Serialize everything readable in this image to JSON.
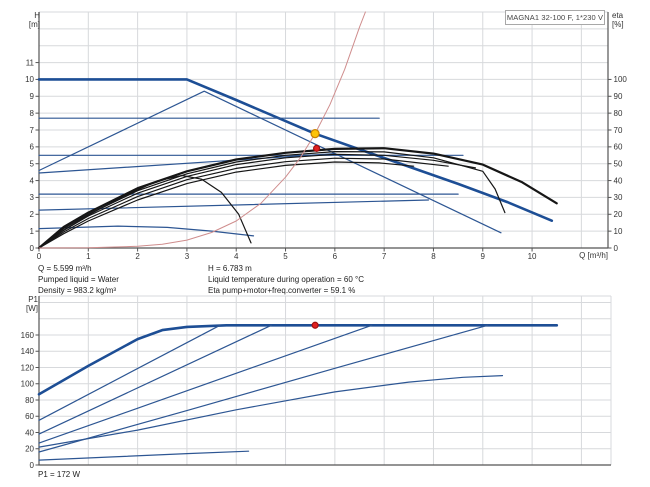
{
  "pump_title": "MAGNA1 32-100 F, 1*230 V",
  "top_chart": {
    "y_label_line1": "H",
    "y_label_line2": "[m]",
    "y2_label_line1": "eta",
    "y2_label_line2": "[%]",
    "x_label": "Q [m³/h]"
  },
  "info": {
    "flow": "Q = 5.599 m³/h",
    "liquid": "Pumped liquid = Water",
    "density": "Density = 983.2 kg/m³",
    "head": "H = 6.783 m",
    "temperature": "Liquid temperature during operation = 60 °C",
    "efficiency": "Eta pump+motor+freq.converter = 59.1 %"
  },
  "bottom_chart": {
    "y_label_line1": "P1",
    "y_label_line2": "[W]",
    "note": "P1 = 172 W"
  },
  "colors": {
    "curve_blue": "#2d5693",
    "curve_blue_thick": "#1d4e95",
    "curve_black": "#161616",
    "system_curve_red": "#cf8d8d",
    "duty_yellow": "#fdc409",
    "duty_yellow_edge": "#c98200",
    "duty_red": "#e02020",
    "duty_red_edge": "#9e1010",
    "grid": "#d7d9dc",
    "axis": "#555555"
  },
  "chart_data": [
    {
      "id": "qh",
      "type": "line",
      "title": "MAGNA1 32-100 F, 1*230 V",
      "xlabel": "Q [m³/h]",
      "ylabel": "H [m]",
      "y2label": "eta [%]",
      "xlim": [
        0,
        11.54
      ],
      "ylim": [
        0,
        14
      ],
      "y2lim": [
        0,
        140
      ],
      "xticks": [
        0,
        1,
        2,
        3,
        4,
        5,
        6,
        7,
        8,
        9,
        10
      ],
      "yticks": [
        0,
        1,
        2,
        3,
        4,
        5,
        6,
        7,
        8,
        9,
        10,
        11
      ],
      "y2ticks": [
        0,
        10,
        20,
        30,
        40,
        50,
        60,
        70,
        80,
        90,
        100
      ],
      "grid": {
        "x_step": 1,
        "y_step": 1
      },
      "series": [
        {
          "name": "qh-max-speed",
          "color": "#1d4e95",
          "w": 2.6,
          "points": [
            [
              0,
              10
            ],
            [
              3,
              10
            ],
            [
              4,
              8.78
            ],
            [
              5,
              7.53
            ],
            [
              5.6,
              6.78
            ],
            [
              6.5,
              5.85
            ],
            [
              7.5,
              4.83
            ],
            [
              8.5,
              3.8
            ],
            [
              9.5,
              2.72
            ],
            [
              10.4,
              1.62
            ]
          ]
        },
        {
          "name": "prop-pressure-line",
          "color": "#2d5693",
          "w": 1.2,
          "points": [
            [
              0,
              4.6
            ],
            [
              3.35,
              9.3
            ],
            [
              9.37,
              0.9
            ]
          ]
        },
        {
          "name": "const-pressure-7-7",
          "color": "#2d5693",
          "w": 1.2,
          "points": [
            [
              0,
              7.7
            ],
            [
              6.9,
              7.7
            ]
          ]
        },
        {
          "name": "const-pressure-5-5",
          "color": "#2d5693",
          "w": 1.2,
          "points": [
            [
              0,
              5.5
            ],
            [
              8.6,
              5.5
            ]
          ]
        },
        {
          "name": "const-pressure-3-2",
          "color": "#2d5693",
          "w": 1.2,
          "points": [
            [
              0,
              3.2
            ],
            [
              8.5,
              3.2
            ]
          ]
        },
        {
          "name": "setpoint-riser-4-45",
          "color": "#2d5693",
          "w": 1.2,
          "points": [
            [
              0,
              4.45
            ],
            [
              6.0,
              5.6
            ]
          ]
        },
        {
          "name": "setpoint-riser-2-25",
          "color": "#2d5693",
          "w": 1.2,
          "points": [
            [
              0,
              2.25
            ],
            [
              7.9,
              2.85
            ]
          ]
        },
        {
          "name": "qh-min-speed",
          "color": "#2d5693",
          "w": 1.2,
          "points": [
            [
              0,
              1.15
            ],
            [
              1.6,
              1.3
            ],
            [
              2.6,
              1.22
            ],
            [
              3.5,
              1.0
            ],
            [
              4.35,
              0.72
            ]
          ]
        },
        {
          "name": "eta-max-speed",
          "color": "#161616",
          "w": 2.2,
          "points": [
            [
              0,
              0
            ],
            [
              0.5,
              1.25
            ],
            [
              1,
              2.1
            ],
            [
              2,
              3.55
            ],
            [
              3,
              4.55
            ],
            [
              4,
              5.25
            ],
            [
              5,
              5.65
            ],
            [
              6,
              5.88
            ],
            [
              7,
              5.92
            ],
            [
              8,
              5.6
            ],
            [
              9,
              4.95
            ],
            [
              9.8,
              3.9
            ],
            [
              10.5,
              2.65
            ]
          ]
        },
        {
          "name": "eta-speed-2",
          "color": "#161616",
          "w": 1.2,
          "points": [
            [
              0,
              0
            ],
            [
              0.5,
              1.15
            ],
            [
              1,
              2.0
            ],
            [
              2,
              3.4
            ],
            [
              3,
              4.4
            ],
            [
              4,
              5.1
            ],
            [
              5,
              5.5
            ],
            [
              6,
              5.72
            ],
            [
              7,
              5.7
            ],
            [
              8,
              5.35
            ],
            [
              9,
              4.55
            ],
            [
              9.25,
              3.5
            ],
            [
              9.45,
              2.1
            ]
          ]
        },
        {
          "name": "eta-speed-3",
          "color": "#161616",
          "w": 1.2,
          "points": [
            [
              0,
              0
            ],
            [
              0.5,
              1.05
            ],
            [
              1,
              1.9
            ],
            [
              2,
              3.25
            ],
            [
              3,
              4.25
            ],
            [
              4,
              4.95
            ],
            [
              5,
              5.35
            ],
            [
              6,
              5.56
            ],
            [
              7,
              5.5
            ],
            [
              8,
              5.2
            ],
            [
              8.85,
              4.75
            ]
          ]
        },
        {
          "name": "eta-speed-4",
          "color": "#161616",
          "w": 1.2,
          "points": [
            [
              0,
              0
            ],
            [
              0.5,
              0.95
            ],
            [
              1,
              1.75
            ],
            [
              2,
              3.05
            ],
            [
              3,
              4.05
            ],
            [
              4,
              4.72
            ],
            [
              5,
              5.12
            ],
            [
              6,
              5.33
            ],
            [
              7,
              5.28
            ],
            [
              8.3,
              4.85
            ]
          ]
        },
        {
          "name": "eta-speed-5",
          "color": "#161616",
          "w": 1.2,
          "points": [
            [
              0,
              0
            ],
            [
              0.5,
              0.85
            ],
            [
              1,
              1.6
            ],
            [
              2,
              2.85
            ],
            [
              3,
              3.82
            ],
            [
              4,
              4.5
            ],
            [
              5,
              4.9
            ],
            [
              6,
              5.1
            ],
            [
              6.9,
              5.05
            ],
            [
              7.6,
              4.85
            ]
          ]
        },
        {
          "name": "eta-min-speed",
          "color": "#161616",
          "w": 1.2,
          "points": [
            [
              0,
              0
            ],
            [
              0.5,
              1.05
            ],
            [
              1,
              1.95
            ],
            [
              1.7,
              3.05
            ],
            [
              2.4,
              3.98
            ],
            [
              2.9,
              4.3
            ],
            [
              3.3,
              4.08
            ],
            [
              3.7,
              3.3
            ],
            [
              4.05,
              2.0
            ],
            [
              4.3,
              0.3
            ]
          ]
        },
        {
          "name": "system-curve",
          "color": "#cf8d8d",
          "w": 1,
          "points": [
            [
              0,
              0
            ],
            [
              1,
              0.02
            ],
            [
              2,
              0.1
            ],
            [
              2.5,
              0.22
            ],
            [
              3,
              0.47
            ],
            [
              3.5,
              0.92
            ],
            [
              4,
              1.6
            ],
            [
              4.5,
              2.65
            ],
            [
              5,
              4.2
            ],
            [
              5.3,
              5.35
            ],
            [
              5.6,
              6.78
            ],
            [
              5.9,
              8.5
            ],
            [
              6.2,
              10.6
            ],
            [
              6.5,
              13.1
            ],
            [
              6.62,
              14
            ]
          ]
        }
      ],
      "markers": [
        {
          "name": "duty-point",
          "x": 5.599,
          "y": 6.783,
          "r": 4,
          "fill": "#fdc409",
          "stroke": "#c98200"
        },
        {
          "name": "eta-duty-point",
          "x": 5.63,
          "y2": 59.1,
          "r": 3,
          "fill": "#e02020",
          "stroke": "#9e1010"
        }
      ]
    },
    {
      "id": "power",
      "type": "line",
      "title": "",
      "xlabel": "",
      "ylabel": "P1 [W]",
      "xlim": [
        0,
        11.6
      ],
      "ylim": [
        0,
        208
      ],
      "xticks": [],
      "yticks": [
        0,
        20,
        40,
        60,
        80,
        100,
        120,
        140,
        160
      ],
      "grid": {
        "x_step": 1,
        "y_step": 20
      },
      "series": [
        {
          "name": "p1-max-speed",
          "color": "#1d4e95",
          "w": 2.6,
          "points": [
            [
              0,
              87
            ],
            [
              1,
              122
            ],
            [
              2,
              155
            ],
            [
              2.5,
              166
            ],
            [
              3,
              170
            ],
            [
              3.8,
              172
            ],
            [
              10.5,
              172
            ]
          ]
        },
        {
          "name": "p1-speed-2",
          "color": "#2d5693",
          "w": 1.2,
          "points": [
            [
              0,
              55
            ],
            [
              3.67,
              172
            ]
          ]
        },
        {
          "name": "p1-speed-3",
          "color": "#2d5693",
          "w": 1.2,
          "points": [
            [
              0,
              38
            ],
            [
              4.71,
              172
            ]
          ]
        },
        {
          "name": "p1-speed-4",
          "color": "#2d5693",
          "w": 1.2,
          "points": [
            [
              0,
              27
            ],
            [
              6.75,
              172
            ]
          ]
        },
        {
          "name": "p1-speed-5",
          "color": "#2d5693",
          "w": 1.2,
          "points": [
            [
              0,
              22
            ],
            [
              2,
              43
            ],
            [
              4,
              68
            ],
            [
              6,
              90
            ],
            [
              7.5,
              102
            ],
            [
              8.6,
              108
            ],
            [
              9.4,
              110
            ]
          ]
        },
        {
          "name": "p1-speed-6",
          "color": "#2d5693",
          "w": 1.2,
          "points": [
            [
              0,
              16
            ],
            [
              3,
              67
            ],
            [
              6,
              119
            ],
            [
              9.1,
              172
            ]
          ]
        },
        {
          "name": "p1-min-speed",
          "color": "#2d5693",
          "w": 1.2,
          "points": [
            [
              0,
              6
            ],
            [
              1.5,
              10
            ],
            [
              3,
              14
            ],
            [
              4.25,
              17
            ]
          ]
        }
      ],
      "markers": [
        {
          "name": "power-duty-point",
          "x": 5.6,
          "y": 172,
          "r": 3,
          "fill": "#e02020",
          "stroke": "#9e1010"
        }
      ]
    }
  ]
}
